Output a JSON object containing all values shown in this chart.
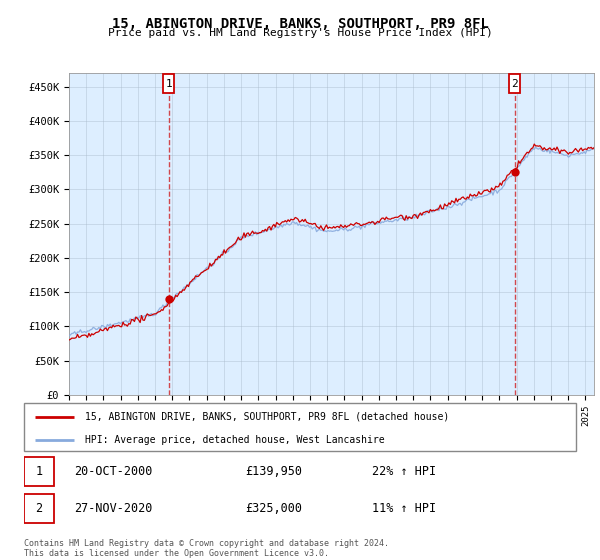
{
  "title": "15, ABINGTON DRIVE, BANKS, SOUTHPORT, PR9 8FL",
  "subtitle": "Price paid vs. HM Land Registry's House Price Index (HPI)",
  "ylabel_ticks": [
    "£0",
    "£50K",
    "£100K",
    "£150K",
    "£200K",
    "£250K",
    "£300K",
    "£350K",
    "£400K",
    "£450K"
  ],
  "ylim": [
    0,
    470000
  ],
  "yticks": [
    0,
    50000,
    100000,
    150000,
    200000,
    250000,
    300000,
    350000,
    400000,
    450000
  ],
  "xlim_start": 1995.0,
  "xlim_end": 2025.5,
  "property_color": "#cc0000",
  "hpi_color": "#88aadd",
  "background_color": "#ffffff",
  "plot_bg_color": "#ddeeff",
  "sale1_x": 2000.8,
  "sale1_y": 139950,
  "sale2_x": 2020.9,
  "sale2_y": 325000,
  "sale1_label": "1",
  "sale2_label": "2",
  "legend_property": "15, ABINGTON DRIVE, BANKS, SOUTHPORT, PR9 8FL (detached house)",
  "legend_hpi": "HPI: Average price, detached house, West Lancashire",
  "annotation1_date": "20-OCT-2000",
  "annotation1_price": "£139,950",
  "annotation1_hpi": "22% ↑ HPI",
  "annotation2_date": "27-NOV-2020",
  "annotation2_price": "£325,000",
  "annotation2_hpi": "11% ↑ HPI",
  "footer": "Contains HM Land Registry data © Crown copyright and database right 2024.\nThis data is licensed under the Open Government Licence v3.0."
}
